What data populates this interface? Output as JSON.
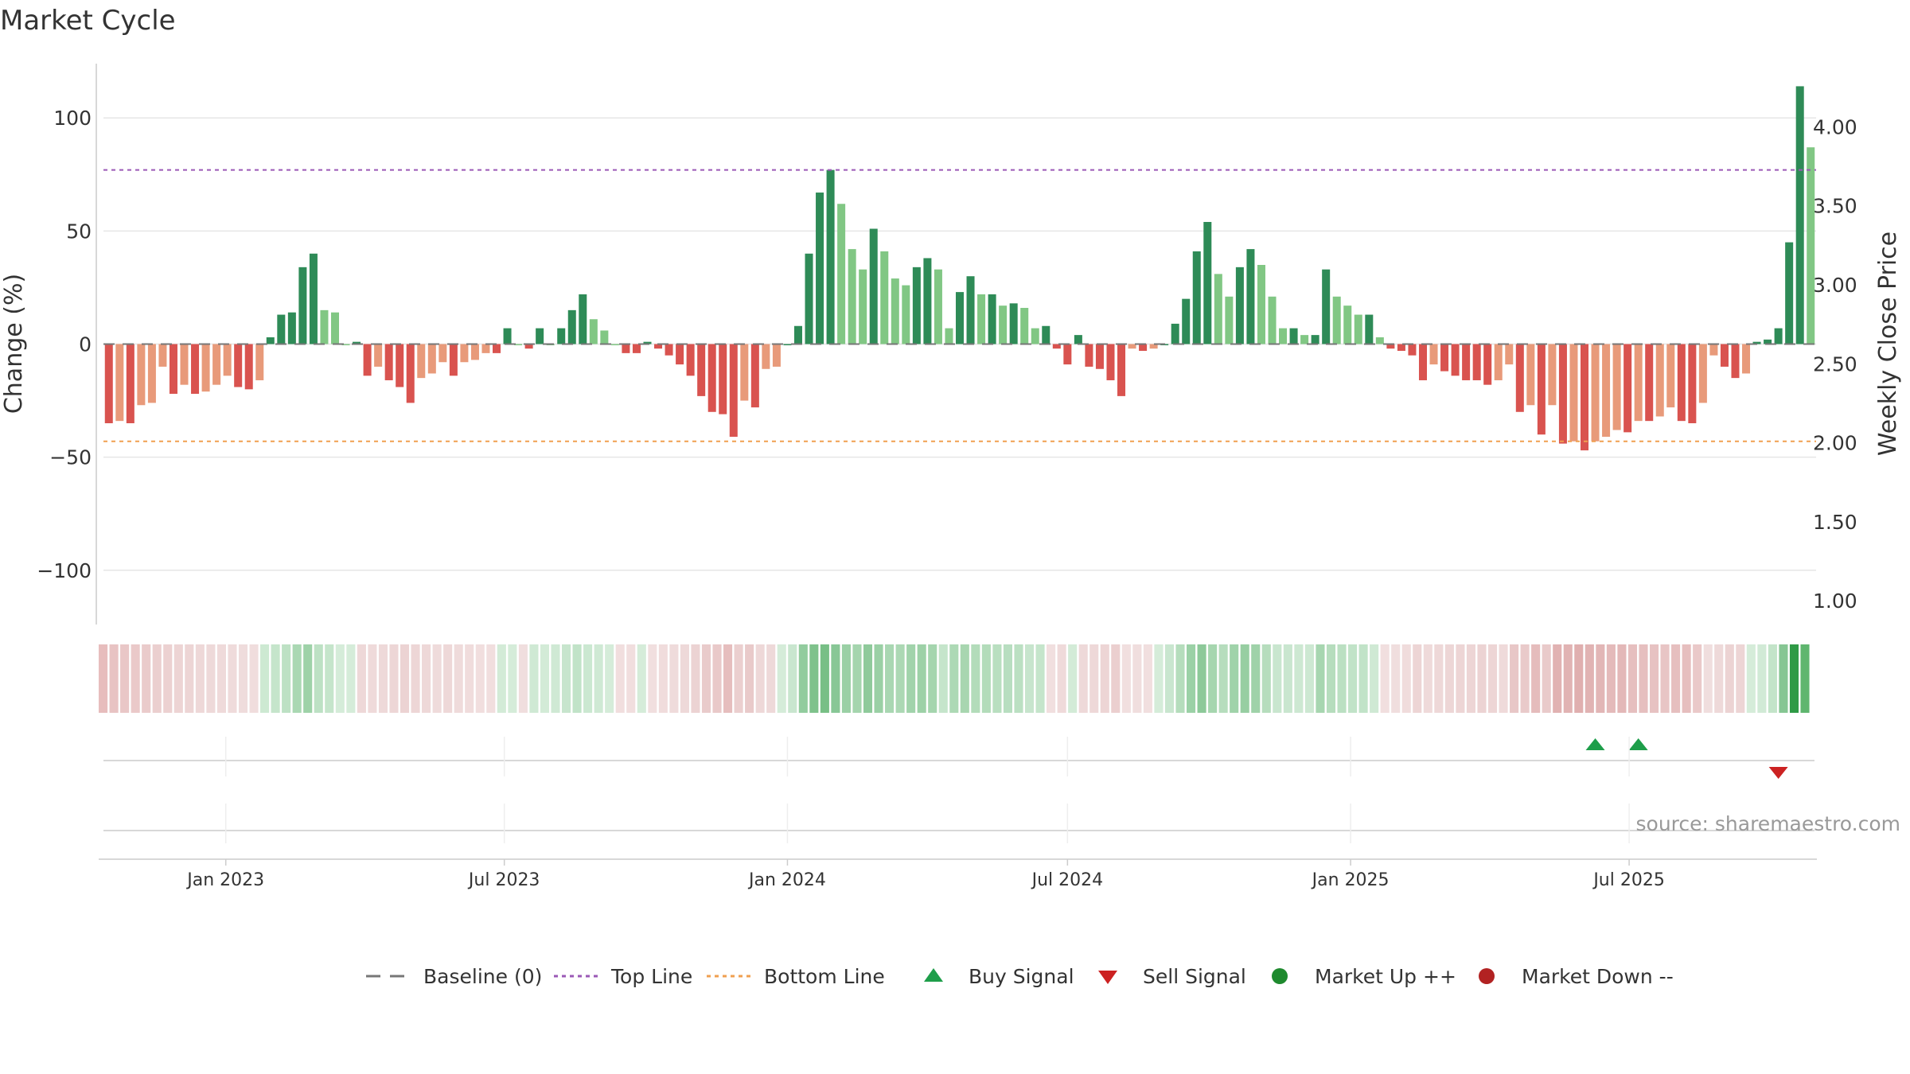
{
  "title": "Market Cycle",
  "source": "source: sharemaestro.com",
  "colors": {
    "bull_dark": "#2e8b57",
    "bull_light": "#81c784",
    "bear_dark": "#d9534f",
    "bear_light": "#e89a7a",
    "top_line": "#9b59b6",
    "bottom_line": "#f0a050",
    "buy": "#1e9e4a",
    "sell": "#cc2222",
    "market_up": "#1e8a2e",
    "market_down": "#b22222",
    "grid": "#e6e6e6"
  },
  "legend": [
    {
      "label": "Baseline (0)",
      "kind": "dash",
      "color": "#777777"
    },
    {
      "label": "Top Line",
      "kind": "dot",
      "color": "#9b59b6"
    },
    {
      "label": "Bottom Line",
      "kind": "dot",
      "color": "#f0a050"
    },
    {
      "label": "Buy Signal",
      "kind": "up",
      "color": "#1e9e4a"
    },
    {
      "label": "Sell Signal",
      "kind": "down",
      "color": "#cc2222"
    },
    {
      "label": "Market Up ++",
      "kind": "circle",
      "color": "#1e8a2e"
    },
    {
      "label": "Market Down --",
      "kind": "circle",
      "color": "#b22222"
    }
  ],
  "chart_data": {
    "type": "bar",
    "x_start": "2022-10-17",
    "x_interval": "1 week",
    "ylabel": "Change (%)",
    "ylabel_right": "Weekly Close Price",
    "ylim": [
      -124,
      124
    ],
    "yticks": [
      100,
      50,
      0,
      -50,
      -100
    ],
    "yticks_labels": [
      "100",
      "50",
      "0",
      "−50",
      "−100"
    ],
    "ylim_right": [
      0.85,
      4.4
    ],
    "yticks_right": [
      4.0,
      3.5,
      3.0,
      2.5,
      2.0,
      1.5,
      1.0
    ],
    "yticks_right_labels": [
      "4.00",
      "3.50",
      "3.00",
      "2.50",
      "2.00",
      "1.50",
      "1.00"
    ],
    "top_line": 77,
    "bottom_line": -43,
    "x_ticks": [
      {
        "label": "Jan 2023",
        "date": "2023-01-01"
      },
      {
        "label": "Jul 2023",
        "date": "2023-07-01"
      },
      {
        "label": "Jan 2024",
        "date": "2024-01-01"
      },
      {
        "label": "Jul 2024",
        "date": "2024-07-01"
      },
      {
        "label": "Jan 2025",
        "date": "2025-01-01"
      },
      {
        "label": "Jul 2025",
        "date": "2025-07-01"
      }
    ],
    "values": [
      -35,
      -34,
      -35,
      -27,
      -26,
      -10,
      -22,
      -18,
      -22,
      -21,
      -18,
      -14,
      -19,
      -20,
      -16,
      3,
      13,
      14,
      34,
      40,
      15,
      14,
      0,
      1,
      -14,
      -10,
      -16,
      -19,
      -26,
      -15,
      -13,
      -8,
      -14,
      -8,
      -7,
      -4,
      -4,
      7,
      0,
      -2,
      7,
      0,
      7,
      15,
      22,
      11,
      6,
      0,
      -4,
      -4,
      1,
      -2,
      -5,
      -9,
      -14,
      -23,
      -30,
      -31,
      -41,
      -25,
      -28,
      -11,
      -10,
      0,
      8,
      40,
      67,
      77,
      62,
      42,
      33,
      51,
      41,
      29,
      26,
      34,
      38,
      33,
      7,
      23,
      30,
      22,
      22,
      17,
      18,
      16,
      7,
      8,
      -2,
      -9,
      4,
      -10,
      -11,
      -16,
      -23,
      -2,
      -3,
      -2,
      0,
      9,
      20,
      41,
      54,
      31,
      21,
      34,
      42,
      35,
      21,
      7,
      7,
      4,
      4,
      33,
      21,
      17,
      13,
      13,
      3,
      -2,
      -3,
      -5,
      -16,
      -9,
      -12,
      -14,
      -16,
      -16,
      -18,
      -16,
      -9,
      -30,
      -27,
      -40,
      -27,
      -44,
      -43,
      -47,
      -43,
      -41,
      -38,
      -39,
      -34,
      -34,
      -32,
      -28,
      -34,
      -35,
      -26,
      -5,
      -10,
      -15,
      -13,
      1,
      2,
      7,
      45,
      114,
      87
    ],
    "strip_colors": [
      "#e7bdbd",
      "#e8c3c3",
      "#e9c7c7",
      "#eac9c9",
      "#eacbcb",
      "#ebcfcf",
      "#ecd1d1",
      "#edd4d4",
      "#edd5d5",
      "#eed8d8",
      "#eed9d9",
      "#efdada",
      "#efdbdb",
      "#efdcdc",
      "#f0dddd",
      "#cde9d2",
      "#c5e5cb",
      "#bde1c4",
      "#aad8b3",
      "#9ed2a8",
      "#bde1c4",
      "#c5e5cb",
      "#d5ecd9",
      "#d5ecd9",
      "#eed8d8",
      "#efdada",
      "#eed9d9",
      "#edd6d6",
      "#ecd3d3",
      "#edd6d6",
      "#eed8d8",
      "#efdbdb",
      "#eed8d8",
      "#efdbdb",
      "#f0dcdc",
      "#f1dede",
      "#f1dede",
      "#d3ebd7",
      "#d5ecd9",
      "#f0dede",
      "#cfe9d4",
      "#d3ebd7",
      "#cfe9d4",
      "#c7e5cd",
      "#c1e3c8",
      "#cbe8d1",
      "#cfe9d4",
      "#d5ecd9",
      "#f1dede",
      "#f1dede",
      "#d5ecd9",
      "#f1dfdf",
      "#f0dcdc",
      "#efdbdb",
      "#eed9d9",
      "#ecd3d3",
      "#e9cbcb",
      "#e9c9c9",
      "#e6bebe",
      "#ebcfcf",
      "#e9caca",
      "#eed8d8",
      "#eed9d9",
      "#d5ecd9",
      "#c9e6cf",
      "#92cc9e",
      "#7fc28c",
      "#78bf86",
      "#88c796",
      "#9ad0a5",
      "#a5d5ae",
      "#8fca9b",
      "#9ad0a5",
      "#a9d7b2",
      "#acd8b4",
      "#a1d3ab",
      "#9dd1a7",
      "#a5d5ae",
      "#c5e5cb",
      "#add9b5",
      "#a8d6b0",
      "#b3dcba",
      "#b3dcba",
      "#b9dfc0",
      "#b8dec0",
      "#bbe0c2",
      "#c7e5cd",
      "#c5e5cb",
      "#f1dfdf",
      "#efdada",
      "#d3ebd7",
      "#eed9d9",
      "#eed8d8",
      "#edd5d5",
      "#ebcfcf",
      "#f1dfdf",
      "#f0dede",
      "#f1dfdf",
      "#d5ecd9",
      "#c9e6cf",
      "#b5ddbc",
      "#9bd1a6",
      "#8dc999",
      "#a6d6af",
      "#b6ddbd",
      "#a0d3aa",
      "#97ce a2",
      "#9fd2a9",
      "#b6ddbd",
      "#c9e6cf",
      "#c9e6cf",
      "#cde8d2",
      "#cde8d2",
      "#a7d6b0",
      "#b6ddbd",
      "#bbe0c2",
      "#c1e3c8",
      "#c1e3c8",
      "#cfe9d4",
      "#f1dfdf",
      "#f0dede",
      "#f0dcdc",
      "#edd5d5",
      "#efdada",
      "#eed8d8",
      "#edd6d6",
      "#edd5d5",
      "#edd5d5",
      "#ecd3d3",
      "#edd5d5",
      "#efdada",
      "#e8c7c7",
      "#e9caca",
      "#e5bcbc",
      "#e9caca",
      "#e1b2b2",
      "#e1b3b3",
      "#e0afaf",
      "#e1b3b3",
      "#e2b6b6",
      "#e4baba",
      "#e3b8b8",
      "#e6bfbf",
      "#e6bfbf",
      "#e7c2c2",
      "#e8c5c5",
      "#e6bfbf",
      "#e6bebe",
      "#eac9c9",
      "#f0dede",
      "#eed9d9",
      "#ecd3d3",
      "#edd5d5",
      "#d5ecd9",
      "#d1eaD6",
      "#c3e4c9",
      "#86c693",
      "#2f9a46",
      "#5fb66f"
    ],
    "buy_signals": [
      138,
      142
    ],
    "sell_signals": [
      155
    ]
  }
}
